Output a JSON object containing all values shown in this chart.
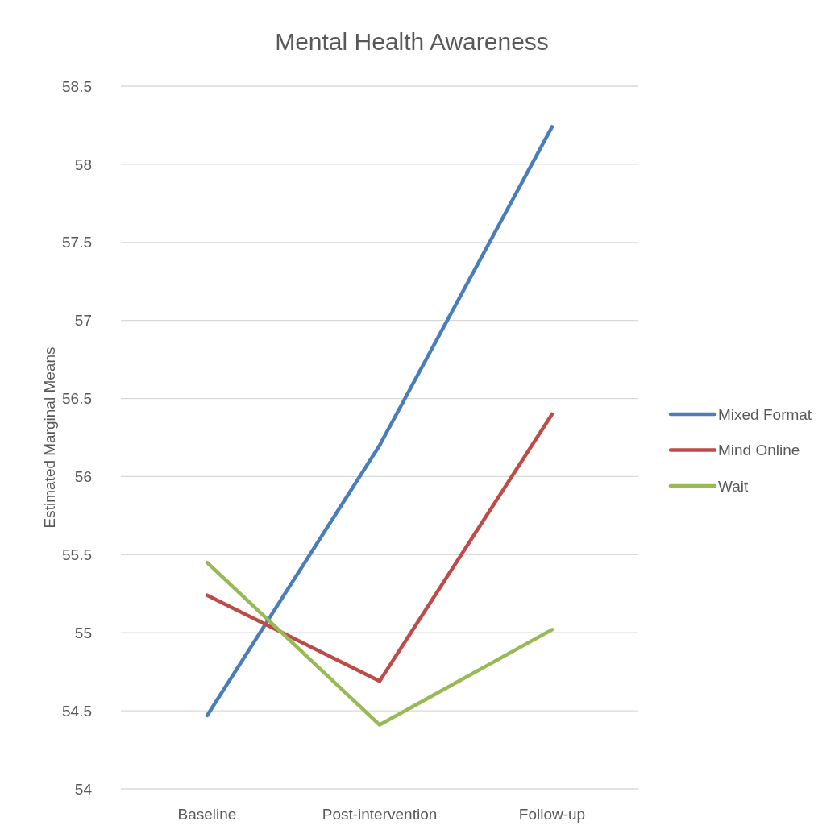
{
  "chart_data": {
    "type": "line",
    "title": "Mental Health Awareness",
    "ylabel": "Estimated Marginal Means",
    "categories": [
      "Baseline",
      "Post-intervention",
      "Follow-up"
    ],
    "series": [
      {
        "name": "Mixed Format",
        "color": "#4a7ebb",
        "values": [
          54.47,
          56.2,
          58.24
        ]
      },
      {
        "name": "Mind Online",
        "color": "#be4b48",
        "values": [
          55.24,
          54.69,
          56.4
        ]
      },
      {
        "name": "Wait",
        "color": "#98b954",
        "values": [
          55.45,
          54.41,
          55.02
        ]
      }
    ],
    "ylim": [
      54,
      58.5
    ],
    "yticks": [
      54,
      {
        "value": 54.5,
        "label": "54.5"
      },
      55,
      {
        "value": 55.5,
        "label": "55.5"
      },
      56,
      {
        "value": 56.5,
        "label": "56.5"
      },
      57,
      {
        "value": 57.5,
        "label": "57.5"
      },
      58,
      {
        "value": 58.5,
        "label": "58.5"
      }
    ],
    "grid": "y",
    "legend": "right",
    "marker": "none",
    "line_style": "solid"
  }
}
